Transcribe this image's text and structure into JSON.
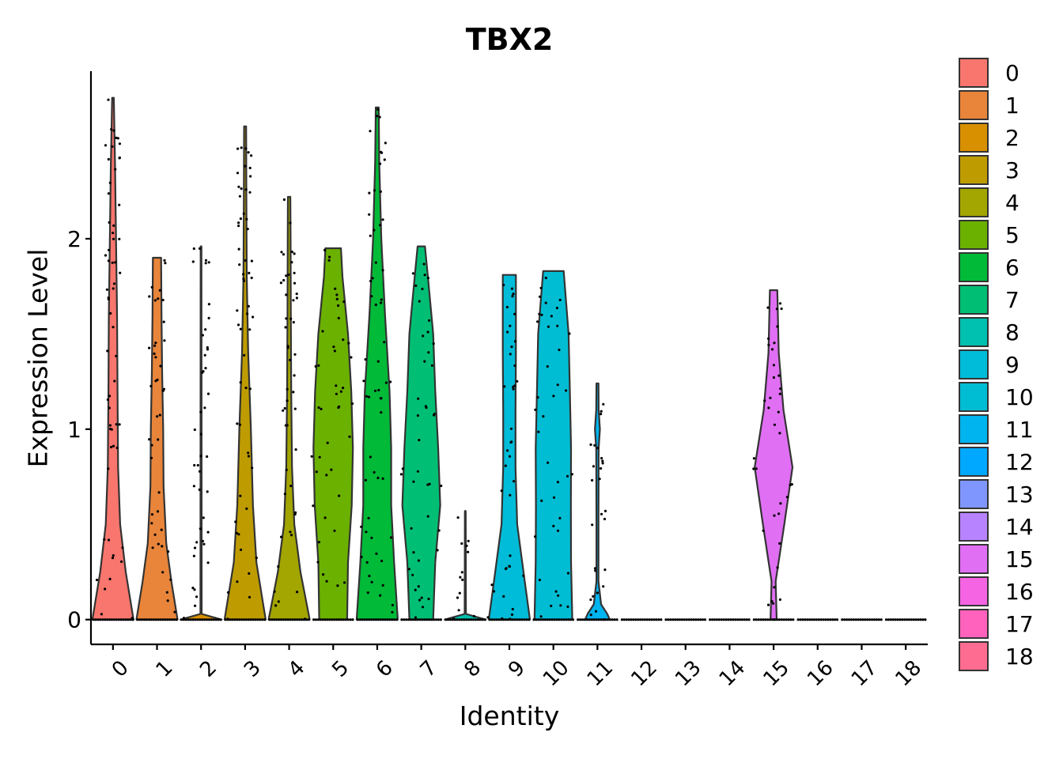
{
  "chart_data": {
    "type": "violin",
    "title": "TBX2",
    "xlabel": "Identity",
    "ylabel": "Expression Level",
    "ylim": [
      -0.13,
      2.88
    ],
    "yticks": [
      "0",
      "1",
      "2"
    ],
    "categories": [
      "0",
      "1",
      "2",
      "3",
      "4",
      "5",
      "6",
      "7",
      "8",
      "9",
      "10",
      "11",
      "12",
      "13",
      "14",
      "15",
      "16",
      "17",
      "18"
    ],
    "legend": {
      "placement": "right",
      "entries": [
        "0",
        "1",
        "2",
        "3",
        "4",
        "5",
        "6",
        "7",
        "8",
        "9",
        "10",
        "11",
        "12",
        "13",
        "14",
        "15",
        "16",
        "17",
        "18"
      ]
    },
    "colors": [
      "#F8766D",
      "#E8853A",
      "#D89000",
      "#BE9C00",
      "#A3A500",
      "#6BB100",
      "#00BA38",
      "#00BF74",
      "#00C0AF",
      "#00BCD8",
      "#00BDD4",
      "#00B4EF",
      "#00A9FF",
      "#7F96FF",
      "#B883FF",
      "#E06FF4",
      "#F564E3",
      "#FF62BC",
      "#FF6C91"
    ],
    "violins": [
      {
        "category": "0",
        "max": 2.74,
        "profile": [
          [
            0,
            1.0
          ],
          [
            0.25,
            0.62
          ],
          [
            0.5,
            0.35
          ],
          [
            0.8,
            0.25
          ],
          [
            1.2,
            0.22
          ],
          [
            1.6,
            0.2
          ],
          [
            2.0,
            0.15
          ],
          [
            2.4,
            0.1
          ],
          [
            2.74,
            0.04
          ]
        ]
      },
      {
        "category": "1",
        "max": 1.9,
        "profile": [
          [
            0,
            1.0
          ],
          [
            0.2,
            0.7
          ],
          [
            0.4,
            0.45
          ],
          [
            0.7,
            0.32
          ],
          [
            1.0,
            0.3
          ],
          [
            1.3,
            0.25
          ],
          [
            1.6,
            0.22
          ],
          [
            1.9,
            0.2
          ]
        ]
      },
      {
        "category": "2",
        "max": 1.96,
        "profile": [
          [
            0,
            1.0
          ],
          [
            0.03,
            0.03
          ],
          [
            1.96,
            0.02
          ]
        ]
      },
      {
        "category": "3",
        "max": 2.59,
        "profile": [
          [
            0,
            1.0
          ],
          [
            0.3,
            0.55
          ],
          [
            0.6,
            0.38
          ],
          [
            1.0,
            0.28
          ],
          [
            1.4,
            0.15
          ],
          [
            1.8,
            0.08
          ],
          [
            2.2,
            0.06
          ],
          [
            2.59,
            0.05
          ]
        ]
      },
      {
        "category": "4",
        "max": 2.22,
        "profile": [
          [
            0,
            1.0
          ],
          [
            0.25,
            0.55
          ],
          [
            0.5,
            0.25
          ],
          [
            0.8,
            0.14
          ],
          [
            1.2,
            0.1
          ],
          [
            1.6,
            0.08
          ],
          [
            2.0,
            0.07
          ],
          [
            2.22,
            0.06
          ]
        ]
      },
      {
        "category": "5",
        "max": 1.95,
        "profile": [
          [
            0,
            0.68
          ],
          [
            0.3,
            0.72
          ],
          [
            0.6,
            0.9
          ],
          [
            0.9,
            0.96
          ],
          [
            1.2,
            0.88
          ],
          [
            1.5,
            0.72
          ],
          [
            1.8,
            0.45
          ],
          [
            1.95,
            0.38
          ]
        ]
      },
      {
        "category": "6",
        "max": 2.69,
        "profile": [
          [
            0,
            1.0
          ],
          [
            0.3,
            0.82
          ],
          [
            0.6,
            0.68
          ],
          [
            0.9,
            0.68
          ],
          [
            1.2,
            0.6
          ],
          [
            1.6,
            0.38
          ],
          [
            2.0,
            0.2
          ],
          [
            2.4,
            0.1
          ],
          [
            2.69,
            0.07
          ]
        ]
      },
      {
        "category": "7",
        "max": 1.96,
        "profile": [
          [
            0,
            0.58
          ],
          [
            0.3,
            0.68
          ],
          [
            0.6,
            0.92
          ],
          [
            0.9,
            0.82
          ],
          [
            1.2,
            0.68
          ],
          [
            1.5,
            0.58
          ],
          [
            1.8,
            0.32
          ],
          [
            1.96,
            0.18
          ]
        ]
      },
      {
        "category": "8",
        "max": 0.57,
        "profile": [
          [
            0,
            1.0
          ],
          [
            0.03,
            0.03
          ],
          [
            0.57,
            0.02
          ]
        ]
      },
      {
        "category": "9",
        "max": 1.81,
        "profile": [
          [
            0,
            1.0
          ],
          [
            0.2,
            0.75
          ],
          [
            0.5,
            0.38
          ],
          [
            0.8,
            0.3
          ],
          [
            1.1,
            0.3
          ],
          [
            1.4,
            0.32
          ],
          [
            1.81,
            0.32
          ]
        ]
      },
      {
        "category": "10",
        "max": 1.83,
        "profile": [
          [
            0,
            0.92
          ],
          [
            0.3,
            0.86
          ],
          [
            0.6,
            0.85
          ],
          [
            0.9,
            0.86
          ],
          [
            1.2,
            0.8
          ],
          [
            1.5,
            0.74
          ],
          [
            1.83,
            0.5
          ]
        ]
      },
      {
        "category": "11",
        "max": 1.24,
        "profile": [
          [
            0,
            0.6
          ],
          [
            0.03,
            0.48
          ],
          [
            0.08,
            0.18
          ],
          [
            0.2,
            0.05
          ],
          [
            0.5,
            0.05
          ],
          [
            0.9,
            0.06
          ],
          [
            1.0,
            0.12
          ],
          [
            1.1,
            0.06
          ],
          [
            1.24,
            0.05
          ]
        ]
      },
      {
        "category": "12",
        "max": 0,
        "profile": []
      },
      {
        "category": "13",
        "max": 0,
        "profile": []
      },
      {
        "category": "14",
        "max": 0,
        "profile": []
      },
      {
        "category": "15",
        "max": 1.73,
        "profile": [
          [
            0,
            0.15
          ],
          [
            0.2,
            0.1
          ],
          [
            0.5,
            0.52
          ],
          [
            0.8,
            0.92
          ],
          [
            1.1,
            0.48
          ],
          [
            1.4,
            0.25
          ],
          [
            1.73,
            0.18
          ]
        ]
      },
      {
        "category": "16",
        "max": 0,
        "profile": []
      },
      {
        "category": "17",
        "max": 0,
        "profile": []
      },
      {
        "category": "18",
        "max": 0,
        "profile": []
      }
    ]
  }
}
